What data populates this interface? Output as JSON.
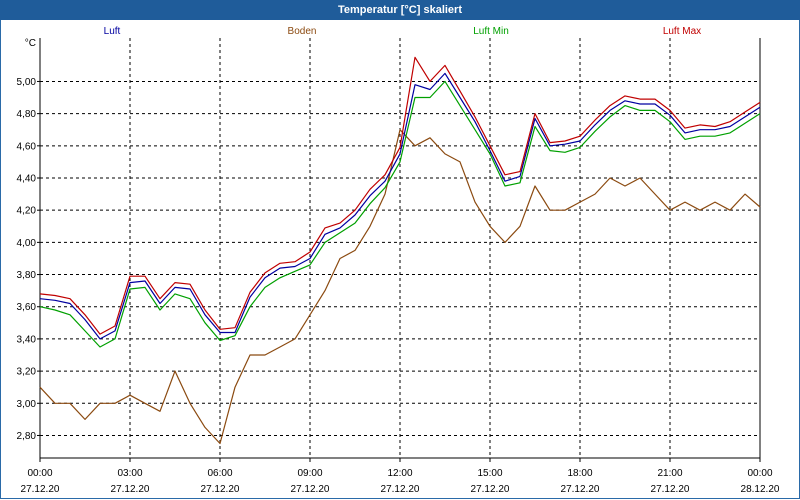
{
  "window": {
    "title": "Temperatur [°C] skaliert"
  },
  "chart_data": {
    "type": "line",
    "title": "Temperatur [°C] skaliert",
    "ylabel": "°C",
    "xlabel": "",
    "ylim": [
      2.66,
      5.27
    ],
    "xlim": [
      0,
      24
    ],
    "grid": true,
    "legend": "top",
    "y_ticks": [
      "2,80",
      "3,00",
      "3,20",
      "3,40",
      "3,60",
      "3,80",
      "4,00",
      "4,20",
      "4,40",
      "4,60",
      "4,80",
      "5,00"
    ],
    "y_tick_values": [
      2.8,
      3.0,
      3.2,
      3.4,
      3.6,
      3.8,
      4.0,
      4.2,
      4.4,
      4.6,
      4.8,
      5.0
    ],
    "x_ticks": [
      {
        "time": "00:00",
        "date": "27.12.20"
      },
      {
        "time": "03:00",
        "date": "27.12.20"
      },
      {
        "time": "06:00",
        "date": "27.12.20"
      },
      {
        "time": "09:00",
        "date": "27.12.20"
      },
      {
        "time": "12:00",
        "date": "27.12.20"
      },
      {
        "time": "15:00",
        "date": "27.12.20"
      },
      {
        "time": "18:00",
        "date": "27.12.20"
      },
      {
        "time": "21:00",
        "date": "27.12.20"
      },
      {
        "time": "00:00",
        "date": "28.12.20"
      }
    ],
    "x_tick_values": [
      0,
      3,
      6,
      9,
      12,
      15,
      18,
      21,
      24
    ],
    "x_hours": [
      0,
      0.5,
      1,
      1.5,
      2,
      2.5,
      3,
      3.5,
      4,
      4.5,
      5,
      5.5,
      6,
      6.5,
      7,
      7.5,
      8,
      8.5,
      9,
      9.5,
      10,
      10.5,
      11,
      11.5,
      12,
      12.5,
      13,
      13.5,
      14,
      14.5,
      15,
      15.5,
      16,
      16.5,
      17,
      17.5,
      18,
      18.5,
      19,
      19.5,
      20,
      20.5,
      21,
      21.5,
      22,
      22.5,
      23,
      23.5,
      24
    ],
    "series": [
      {
        "name": "Luft",
        "color": "#0000a0",
        "values": [
          3.65,
          3.64,
          3.62,
          3.52,
          3.4,
          3.45,
          3.75,
          3.76,
          3.62,
          3.72,
          3.71,
          3.55,
          3.44,
          3.44,
          3.66,
          3.78,
          3.84,
          3.85,
          3.9,
          4.05,
          4.09,
          4.17,
          4.29,
          4.38,
          4.55,
          4.98,
          4.95,
          5.05,
          4.9,
          4.75,
          4.57,
          4.38,
          4.41,
          4.77,
          4.6,
          4.61,
          4.63,
          4.73,
          4.82,
          4.88,
          4.86,
          4.86,
          4.79,
          4.68,
          4.7,
          4.7,
          4.72,
          4.78,
          4.84
        ]
      },
      {
        "name": "Boden",
        "color": "#8b4a10",
        "values": [
          3.1,
          3.0,
          3.0,
          2.9,
          3.0,
          3.0,
          3.05,
          3.0,
          2.95,
          3.2,
          3.0,
          2.85,
          2.75,
          3.1,
          3.3,
          3.3,
          3.35,
          3.4,
          3.55,
          3.7,
          3.9,
          3.95,
          4.1,
          4.3,
          4.7,
          4.6,
          4.65,
          4.55,
          4.5,
          4.25,
          4.1,
          4.0,
          4.1,
          4.35,
          4.2,
          4.2,
          4.25,
          4.3,
          4.4,
          4.35,
          4.4,
          4.3,
          4.2,
          4.25,
          4.2,
          4.25,
          4.2,
          4.3,
          4.22
        ]
      },
      {
        "name": "Luft Min",
        "color": "#00a000",
        "values": [
          3.6,
          3.58,
          3.55,
          3.45,
          3.35,
          3.4,
          3.71,
          3.72,
          3.58,
          3.68,
          3.65,
          3.5,
          3.39,
          3.42,
          3.6,
          3.72,
          3.78,
          3.82,
          3.86,
          4.0,
          4.06,
          4.12,
          4.24,
          4.34,
          4.5,
          4.9,
          4.9,
          5.0,
          4.85,
          4.7,
          4.55,
          4.35,
          4.37,
          4.72,
          4.57,
          4.56,
          4.59,
          4.69,
          4.78,
          4.85,
          4.82,
          4.82,
          4.75,
          4.64,
          4.66,
          4.66,
          4.68,
          4.74,
          4.8
        ]
      },
      {
        "name": "Luft Max",
        "color": "#c00000",
        "values": [
          3.68,
          3.67,
          3.65,
          3.55,
          3.43,
          3.48,
          3.79,
          3.79,
          3.65,
          3.75,
          3.74,
          3.58,
          3.46,
          3.47,
          3.69,
          3.81,
          3.87,
          3.88,
          3.94,
          4.09,
          4.12,
          4.2,
          4.33,
          4.42,
          4.59,
          5.15,
          5.0,
          5.1,
          4.94,
          4.78,
          4.6,
          4.42,
          4.44,
          4.8,
          4.62,
          4.63,
          4.66,
          4.76,
          4.85,
          4.91,
          4.89,
          4.89,
          4.82,
          4.71,
          4.73,
          4.72,
          4.75,
          4.81,
          4.87
        ]
      }
    ]
  }
}
